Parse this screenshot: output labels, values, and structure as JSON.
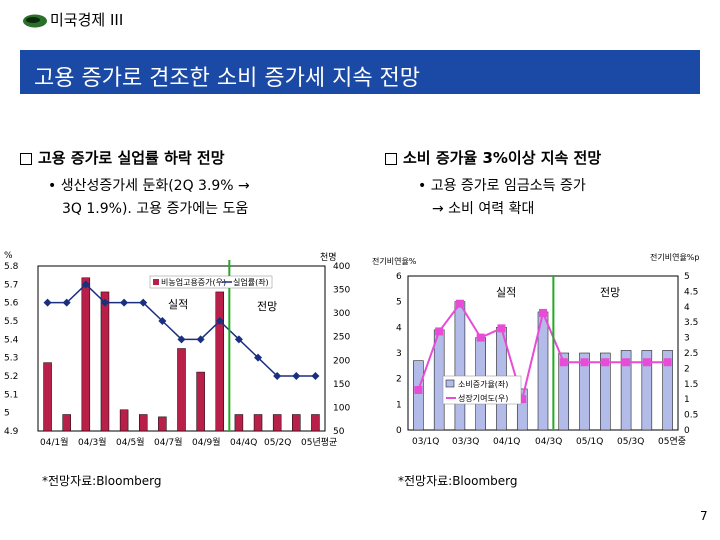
{
  "header": {
    "section": "미국경제 III"
  },
  "banner": {
    "title": "고용 증가로 견조한 소비 증가세 지속 전망"
  },
  "left": {
    "heading": "고용 증가로 실업률 하락 전망",
    "bullet_line1": "• 생산성증가세 둔화(2Q 3.9% → ",
    "bullet_line2": "3Q 1.9%). 고용 증가에는 도움",
    "source": "*전망자료:Bloomberg"
  },
  "right": {
    "heading": "소비 증가율 3%이상 지속 전망",
    "bullet_line1": "• 고용 증가로 임금소득 증가",
    "bullet_line2": "→ 소비 여력 확대",
    "source": "*전망자료:Bloomberg"
  },
  "chart_data": [
    {
      "type": "bar+line",
      "left_axis_unit": "%",
      "right_axis_unit": "천명",
      "left_ticks": [
        "5.8",
        "5.7",
        "5.6",
        "5.5",
        "5.4",
        "5.3",
        "5.2",
        "5.1",
        "5",
        "4.9"
      ],
      "right_ticks": [
        "400",
        "350",
        "300",
        "250",
        "200",
        "150",
        "100",
        "50"
      ],
      "x_tick_labels": [
        "04/1월",
        "04/3월",
        "04/5월",
        "04/7월",
        "04/9월",
        "04/4Q",
        "05/2Q",
        "05년평균"
      ],
      "legend": [
        "비농업고용증가(우)",
        "실업률(좌)"
      ],
      "annotations": [
        "실적",
        "전망"
      ],
      "ylim_left": [
        4.9,
        5.8
      ],
      "ylim_right": [
        50,
        400
      ],
      "series": [
        {
          "name": "비농업고용증가(우)",
          "axis": "right",
          "values": [
            195,
            85,
            375,
            345,
            95,
            85,
            80,
            225,
            175,
            345,
            85,
            85,
            85,
            85,
            85
          ]
        },
        {
          "name": "실업률(좌)",
          "axis": "left",
          "values": [
            5.6,
            5.6,
            5.7,
            5.6,
            5.6,
            5.6,
            5.5,
            5.4,
            5.4,
            5.5,
            5.4,
            5.3,
            5.2,
            5.2,
            5.2
          ]
        }
      ]
    },
    {
      "type": "bar+line",
      "left_axis_unit": "전기비연율%",
      "right_axis_unit": "전기비연율%p",
      "left_ticks": [
        "6",
        "5",
        "4",
        "3",
        "2",
        "1",
        "0"
      ],
      "right_ticks": [
        "5",
        "4.5",
        "4",
        "3.5",
        "3",
        "2.5",
        "2",
        "1.5",
        "1",
        "0.5",
        "0"
      ],
      "x_tick_labels": [
        "03/1Q",
        "03/3Q",
        "04/1Q",
        "04/3Q",
        "05/1Q",
        "05/3Q",
        "05연중"
      ],
      "legend": [
        "소비증가율(좌)",
        "성장기여도(우)"
      ],
      "annotations": [
        "실적",
        "전망"
      ],
      "ylim_left": [
        0,
        6
      ],
      "ylim_right": [
        0,
        5
      ],
      "series": [
        {
          "name": "소비증가율(좌)",
          "axis": "left",
          "values": [
            2.7,
            3.9,
            5.0,
            3.6,
            4.0,
            1.6,
            4.6,
            3.0,
            3.0,
            3.0,
            3.1,
            3.1,
            3.1
          ]
        },
        {
          "name": "성장기여도(우)",
          "axis": "right",
          "values": [
            1.3,
            3.2,
            4.1,
            3.0,
            3.3,
            1.0,
            3.8,
            2.2,
            2.2,
            2.2,
            2.2,
            2.2,
            2.2
          ]
        }
      ]
    }
  ],
  "page": {
    "number": "7"
  }
}
